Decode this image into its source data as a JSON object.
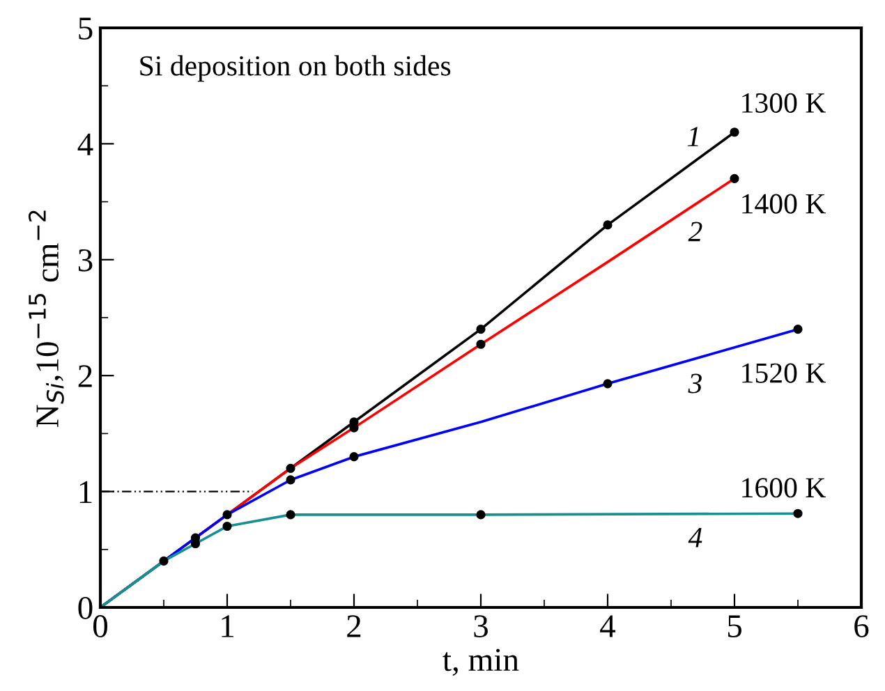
{
  "chart_data": {
    "type": "line",
    "xlabel": "t, min",
    "ylabel": "N$_{Si}$,10$^{−15}$ cm$^{−2}$",
    "xlim": [
      0,
      6
    ],
    "ylim": [
      0,
      5
    ],
    "xticks": [
      0,
      1,
      2,
      3,
      4,
      5,
      6
    ],
    "yticks": [
      0,
      1,
      2,
      3,
      4,
      5
    ],
    "grid": false,
    "legend": false,
    "series": [
      {
        "color": "#000000",
        "x": [
          0,
          0.5,
          0.75,
          1,
          1.5,
          2,
          3,
          4,
          5
        ],
        "values": [
          0,
          0.4,
          0.6,
          0.8,
          1.2,
          1.6,
          2.4,
          3.3,
          4.1
        ]
      },
      {
        "color": "#ff0000",
        "x": [
          0.75,
          1,
          1.5,
          2,
          3,
          4,
          5
        ],
        "values": [
          0.6,
          0.8,
          1.2,
          1.55,
          2.27,
          2.98,
          3.7
        ]
      },
      {
        "color": "#0000ff",
        "x": [
          0,
          0.5,
          0.75,
          1,
          1.5,
          2,
          3,
          4,
          5.5
        ],
        "values": [
          0,
          0.4,
          0.6,
          0.8,
          1.1,
          1.3,
          1.6,
          1.93,
          2.4
        ]
      },
      {
        "color": "#199090",
        "x": [
          0,
          0.5,
          0.75,
          1,
          1.5,
          2,
          3,
          5.5
        ],
        "values": [
          0,
          0.4,
          0.55,
          0.7,
          0.8,
          0.8,
          0.8,
          0.81
        ]
      },
      {
        "type": "scatter",
        "marker": "circle",
        "color": "#000000",
        "x": [
          0.5,
          0.75,
          1,
          1.5,
          2,
          3,
          4,
          5,
          2,
          3,
          5,
          1.5,
          2,
          4,
          5.5,
          0.75,
          1,
          1.5,
          3,
          5.5
        ],
        "values": [
          0.4,
          0.6,
          0.8,
          1.2,
          1.6,
          2.4,
          3.3,
          4.1,
          1.55,
          2.27,
          3.7,
          1.1,
          1.3,
          1.93,
          2.4,
          0.55,
          0.7,
          0.8,
          0.8,
          0.81
        ]
      }
    ],
    "ref_lines": [
      {
        "axis": "y",
        "value": 1,
        "line_style": "dashdot",
        "color": "#000000"
      }
    ],
    "annotations": [
      "Si deposition on both sides",
      "1",
      "2",
      "3",
      "4",
      "1300 K",
      "1400 K",
      "1520 K",
      "1600 K"
    ]
  }
}
